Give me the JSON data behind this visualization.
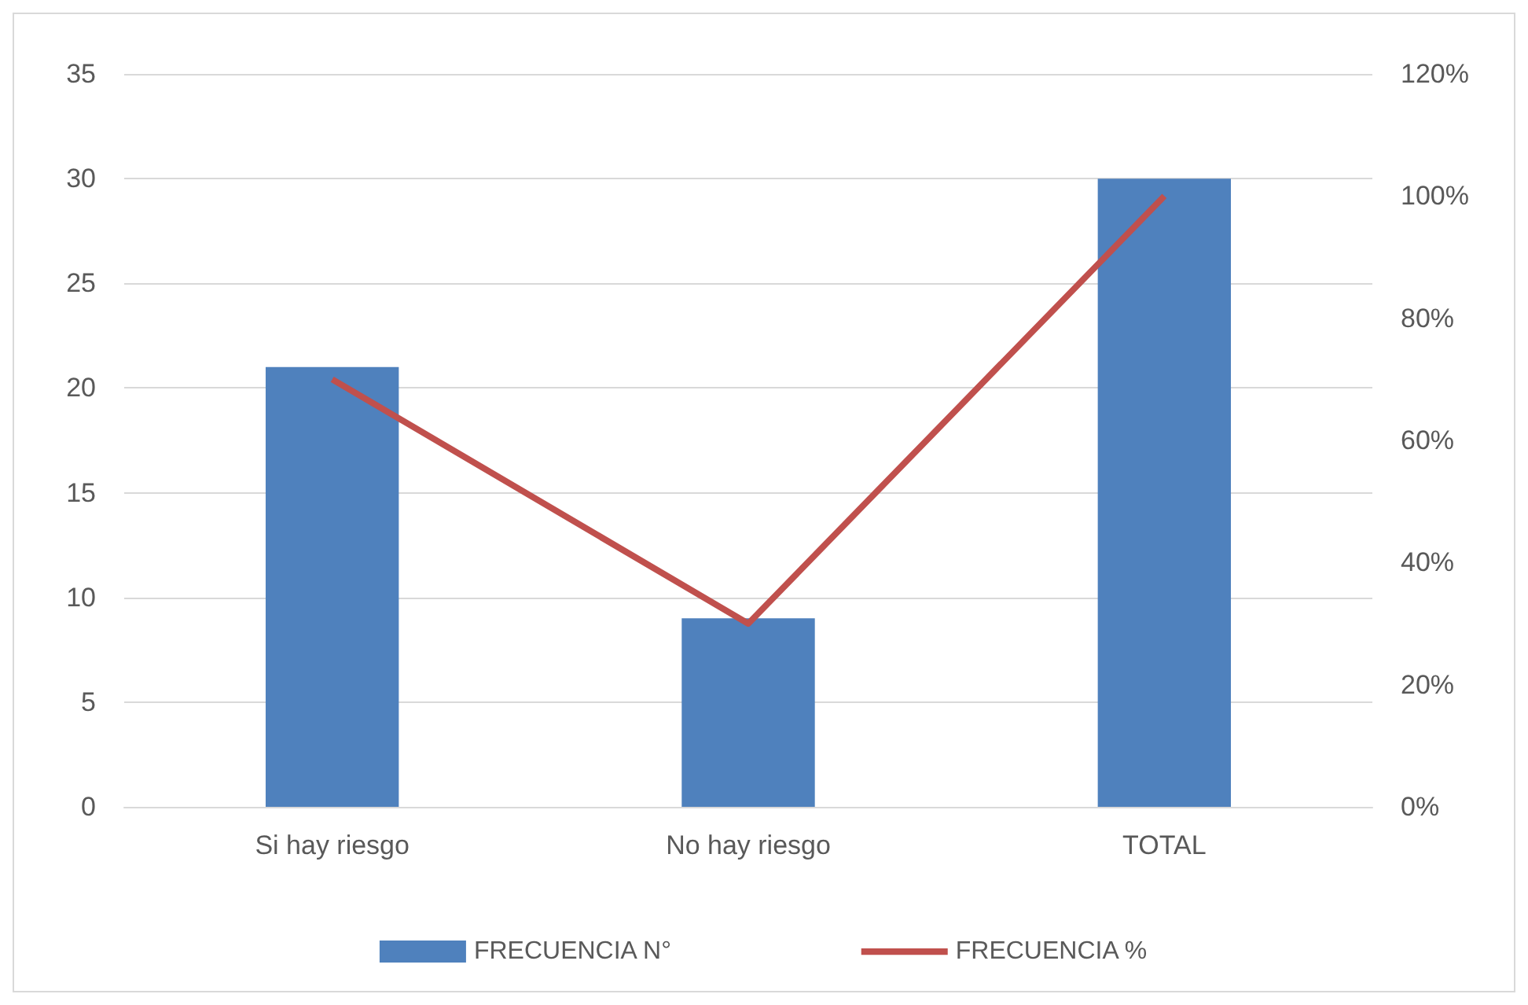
{
  "chart_data": {
    "type": "bar",
    "categories": [
      "Si hay riesgo",
      "No hay riesgo",
      "TOTAL"
    ],
    "series": [
      {
        "name": "FRECUENCIA N°",
        "color": "#4f81bd",
        "values": [
          21,
          9,
          30
        ]
      },
      {
        "name": "FRECUENCIA %",
        "type": "line",
        "axis": "y2",
        "color": "#c0504d",
        "values": [
          70,
          30,
          100
        ]
      }
    ],
    "ylim": [
      0,
      35
    ],
    "yticks": [
      0,
      5,
      10,
      15,
      20,
      25,
      30,
      35
    ],
    "y2lim": [
      0,
      120
    ],
    "y2ticks": [
      {
        "value": 0,
        "label": "0%"
      },
      {
        "value": 20,
        "label": "20%"
      },
      {
        "value": 40,
        "label": "40%"
      },
      {
        "value": 60,
        "label": "60%"
      },
      {
        "value": 80,
        "label": "80%"
      },
      {
        "value": 100,
        "label": "100%"
      },
      {
        "value": 120,
        "label": "120%"
      }
    ],
    "grid": "y",
    "legend": "bottom",
    "marker": "none",
    "line_style": "solid"
  }
}
